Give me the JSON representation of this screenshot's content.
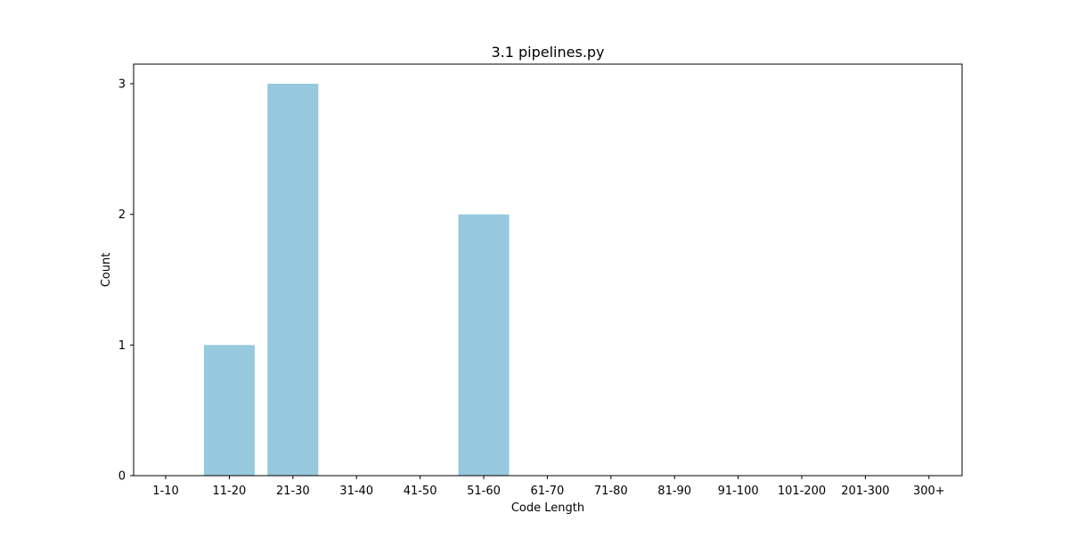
{
  "chart_data": {
    "type": "bar",
    "title": "3.1 pipelines.py",
    "xlabel": "Code Length",
    "ylabel": "Count",
    "categories": [
      "1-10",
      "11-20",
      "21-30",
      "31-40",
      "41-50",
      "51-60",
      "61-70",
      "71-80",
      "81-90",
      "91-100",
      "101-200",
      "201-300",
      "300+"
    ],
    "values": [
      0,
      1,
      3,
      0,
      0,
      2,
      0,
      0,
      0,
      0,
      0,
      0,
      0
    ],
    "ylim": [
      0,
      3.15
    ],
    "yticks": [
      0,
      1,
      2,
      3
    ],
    "grid": false,
    "legend": false,
    "bar_color": "#96c9dd"
  }
}
